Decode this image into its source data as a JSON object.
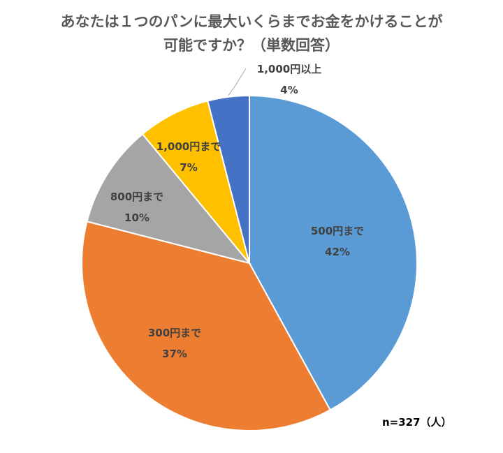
{
  "chart_data": {
    "type": "pie",
    "title_lines": [
      "あなたは１つのパンに最大いくらまでお金をかけることが",
      "可能ですか？（単数回答）"
    ],
    "note": "n=327（人）",
    "start_angle_deg": 0,
    "direction": "clockwise",
    "slices": [
      {
        "name": "500円まで",
        "value": 42,
        "label": "42%",
        "color": "#5b9bd5"
      },
      {
        "name": "300円まで",
        "value": 37,
        "label": "37%",
        "color": "#ed7d31"
      },
      {
        "name": "800円まで",
        "value": 10,
        "label": "10%",
        "color": "#a5a5a5"
      },
      {
        "name": "1,000円まで",
        "value": 7,
        "label": "7%",
        "color": "#ffc000"
      },
      {
        "name": "1,000円以上",
        "value": 4,
        "label": "4%",
        "color": "#4472c4"
      }
    ]
  }
}
